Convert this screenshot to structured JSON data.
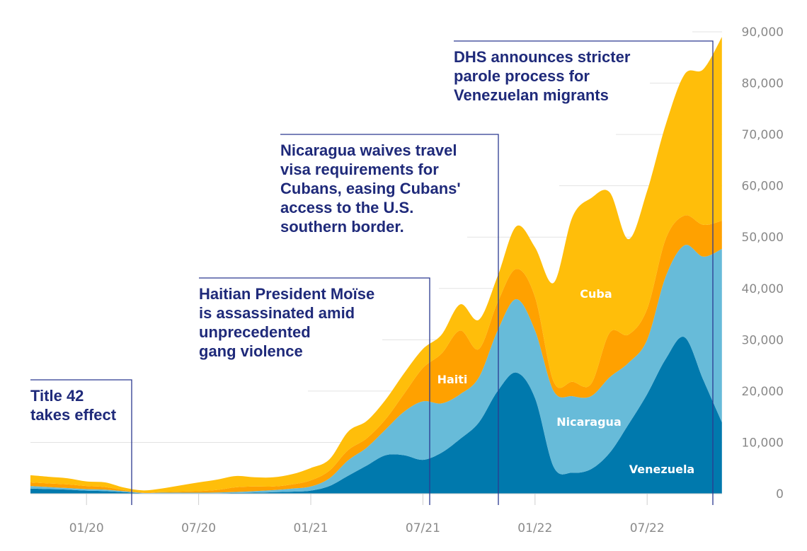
{
  "chart_data": {
    "type": "area",
    "stacked": true,
    "x": [
      "10/19",
      "11/19",
      "12/19",
      "01/20",
      "02/20",
      "03/20",
      "04/20",
      "05/20",
      "06/20",
      "07/20",
      "08/20",
      "09/20",
      "10/20",
      "11/20",
      "12/20",
      "01/21",
      "02/21",
      "03/21",
      "04/21",
      "05/21",
      "06/21",
      "07/21",
      "08/21",
      "09/21",
      "10/21",
      "11/21",
      "12/21",
      "01/22",
      "02/22",
      "03/22",
      "04/22",
      "05/22",
      "06/22",
      "07/22",
      "08/22",
      "09/22",
      "10/22",
      "11/22"
    ],
    "x_tick_labels": [
      "01/20",
      "07/20",
      "01/21",
      "07/21",
      "01/22",
      "07/22"
    ],
    "y_tick_labels": [
      "0",
      "10,000",
      "20,000",
      "30,000",
      "40,000",
      "50,000",
      "60,000",
      "70,000",
      "80,000",
      "90,000"
    ],
    "ylim": [
      0,
      90000
    ],
    "y_axis_side": "right",
    "grid": true,
    "series": [
      {
        "name": "Venezuela",
        "color": "#0079AD",
        "values": [
          1000,
          900,
          800,
          600,
          500,
          300,
          100,
          100,
          100,
          100,
          100,
          150,
          200,
          300,
          400,
          600,
          1500,
          3500,
          5500,
          7500,
          7500,
          6600,
          8000,
          10700,
          13900,
          20000,
          23600,
          18600,
          5200,
          4100,
          4800,
          8000,
          13500,
          19400,
          26300,
          30500,
          22200,
          13900
        ]
      },
      {
        "name": "Nicaragua",
        "color": "#67BBD9",
        "values": [
          500,
          400,
          300,
          300,
          300,
          200,
          50,
          100,
          100,
          100,
          150,
          200,
          300,
          400,
          600,
          800,
          1500,
          3000,
          3500,
          5000,
          8500,
          11400,
          9600,
          8700,
          8800,
          11800,
          14300,
          13200,
          14800,
          14900,
          14200,
          14700,
          12000,
          10600,
          16100,
          17900,
          24000,
          33800
        ]
      },
      {
        "name": "Haiti",
        "color": "#FFA100",
        "values": [
          700,
          700,
          700,
          600,
          500,
          200,
          100,
          100,
          200,
          300,
          500,
          900,
          900,
          700,
          800,
          1200,
          1500,
          2000,
          1800,
          2000,
          3500,
          6500,
          9700,
          12400,
          5500,
          5500,
          5900,
          6500,
          1800,
          2800,
          2400,
          8700,
          5500,
          6000,
          7300,
          5800,
          6200,
          5500
        ]
      },
      {
        "name": "Cuba",
        "color": "#FFBE0A",
        "values": [
          1400,
          1300,
          1200,
          900,
          900,
          500,
          400,
          700,
          1200,
          1700,
          2000,
          2200,
          1800,
          1800,
          2000,
          2400,
          2200,
          3600,
          3400,
          3800,
          4000,
          3700,
          3700,
          5100,
          5700,
          5100,
          8300,
          9700,
          19300,
          32100,
          36200,
          27300,
          18600,
          23000,
          22300,
          27500,
          30300,
          35800
        ]
      }
    ],
    "annotations": [
      {
        "text": [
          "Title 42",
          "takes effect"
        ],
        "date": "03/20"
      },
      {
        "text": [
          "Haitian President Moïse",
          "is assassinated amid",
          "unprecedented",
          "gang violence"
        ],
        "date": "07/21"
      },
      {
        "text": [
          "Nicaragua waives travel",
          "visa requirements for",
          "Cubans, easing Cubans'",
          "access to the U.S.",
          "southern border."
        ],
        "date": "11/21"
      },
      {
        "text": [
          "DHS announces stricter",
          "parole process for",
          "Venezuelan migrants"
        ],
        "date": "10/22"
      }
    ]
  }
}
